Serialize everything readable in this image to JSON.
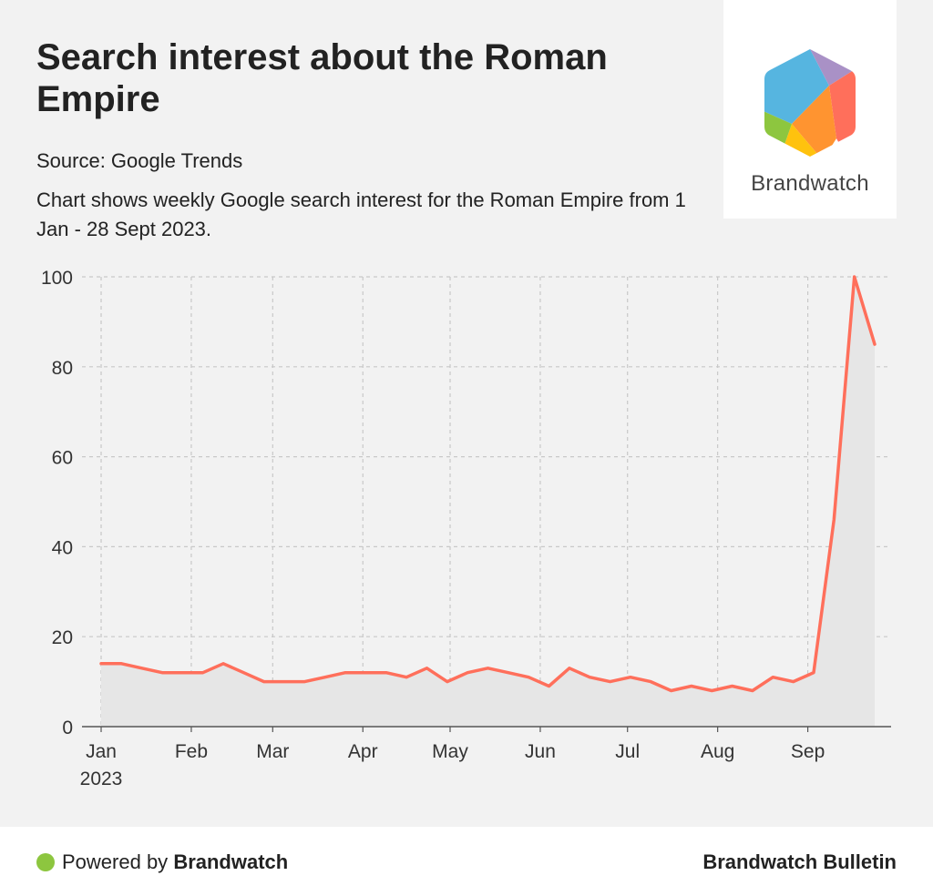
{
  "header": {
    "title": "Search interest about the Roman Empire",
    "source": "Source: Google Trends",
    "description": "Chart shows weekly Google search interest for the Roman Empire from 1 Jan - 28 Sept 2023."
  },
  "logo": {
    "name": "Brandwatch",
    "colors": [
      "#56b5e0",
      "#a991c6",
      "#ff6f5b",
      "#ff9430",
      "#ffc20e",
      "#8dc63f"
    ]
  },
  "footer": {
    "powered_prefix": "Powered by",
    "powered_brand": "Brandwatch",
    "bulletin": "Brandwatch Bulletin",
    "dot_color": "#8dc63f"
  },
  "chart_data": {
    "type": "area",
    "title": "",
    "xlabel": "",
    "ylabel": "",
    "ylim": [
      0,
      100
    ],
    "yticks": [
      0,
      20,
      40,
      60,
      80,
      100
    ],
    "xticks": [
      {
        "date": "2023-01-01",
        "label": "Jan",
        "sublabel": "2023"
      },
      {
        "date": "2023-02-01",
        "label": "Feb"
      },
      {
        "date": "2023-03-01",
        "label": "Mar"
      },
      {
        "date": "2023-04-01",
        "label": "Apr"
      },
      {
        "date": "2023-05-01",
        "label": "May"
      },
      {
        "date": "2023-06-01",
        "label": "Jun"
      },
      {
        "date": "2023-07-01",
        "label": "Jul"
      },
      {
        "date": "2023-08-01",
        "label": "Aug"
      },
      {
        "date": "2023-09-01",
        "label": "Sep"
      }
    ],
    "grid": true,
    "line_color": "#ff6f5b",
    "area_color": "#e6e6e6",
    "series": [
      {
        "x": [
          "2023-01-01",
          "2023-01-08",
          "2023-01-15",
          "2023-01-22",
          "2023-01-29",
          "2023-02-05",
          "2023-02-12",
          "2023-02-19",
          "2023-02-26",
          "2023-03-05",
          "2023-03-12",
          "2023-03-19",
          "2023-03-26",
          "2023-04-02",
          "2023-04-09",
          "2023-04-16",
          "2023-04-23",
          "2023-04-30",
          "2023-05-07",
          "2023-05-14",
          "2023-05-21",
          "2023-05-28",
          "2023-06-04",
          "2023-06-11",
          "2023-06-18",
          "2023-06-25",
          "2023-07-02",
          "2023-07-09",
          "2023-07-16",
          "2023-07-23",
          "2023-07-30",
          "2023-08-06",
          "2023-08-13",
          "2023-08-20",
          "2023-08-27",
          "2023-09-03",
          "2023-09-10",
          "2023-09-17",
          "2023-09-24"
        ],
        "values": [
          14,
          14,
          13,
          12,
          12,
          12,
          14,
          12,
          10,
          10,
          10,
          11,
          12,
          12,
          12,
          11,
          13,
          10,
          12,
          13,
          12,
          11,
          9,
          13,
          11,
          10,
          11,
          10,
          8,
          9,
          8,
          9,
          8,
          11,
          10,
          12,
          46,
          100,
          85
        ]
      }
    ]
  }
}
